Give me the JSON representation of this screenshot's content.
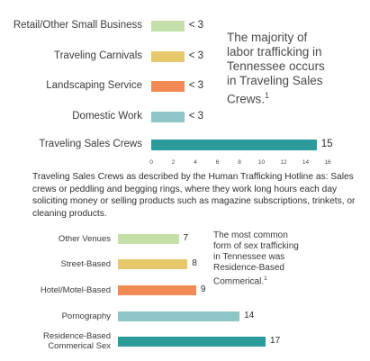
{
  "colors": {
    "retail": "#c5dfa8",
    "carnivals": "#e6c86a",
    "landscaping": "#f28b53",
    "domestic": "#8ec6c8",
    "sales_crews": "#2a9a9b",
    "other_venues": "#c5dfa8",
    "street": "#e6c86a",
    "hotel": "#f28b53",
    "porn": "#8ec6c8",
    "residence": "#2a9a9b"
  },
  "chart_data": [
    {
      "type": "bar",
      "orientation": "horizontal",
      "categories": [
        "Retail/Other Small Business",
        "Traveling Carnivals",
        "Landscaping Service",
        "Domestic Work",
        "Traveling Sales Crews"
      ],
      "values": [
        3,
        3,
        3,
        3,
        15
      ],
      "value_labels": [
        "< 3",
        "< 3",
        "< 3",
        "< 3",
        "15"
      ],
      "xlim": [
        0,
        16
      ],
      "xticks": [
        "0",
        "2",
        "4",
        "6",
        "8",
        "10",
        "12",
        "14",
        "16"
      ],
      "annotation": {
        "text": "The majority of labor trafficking in Tennessee occurs in Traveling Sales Crews.",
        "sup": "1"
      }
    },
    {
      "type": "bar",
      "orientation": "horizontal",
      "categories": [
        "Other Venues",
        "Street-Based",
        "Hotel/Motel-Based",
        "Pornography",
        "Residence-Based Commerical Sex"
      ],
      "values": [
        7,
        8,
        9,
        14,
        17
      ],
      "value_labels": [
        "7",
        "8",
        "9",
        "14",
        "17"
      ],
      "xlim": [
        0,
        18
      ],
      "annotation": {
        "text": "The most common form of sex trafficking in Tennessee was Residence-Based Commerical.",
        "sup": "1"
      }
    }
  ],
  "description": "Traveling Sales Crews as described by the Human Trafficking Hotline as: Sales crews or peddling and begging rings, where they work long hours each day soliciting money or selling products such as magazine subscriptions, trinkets, or cleaning products."
}
